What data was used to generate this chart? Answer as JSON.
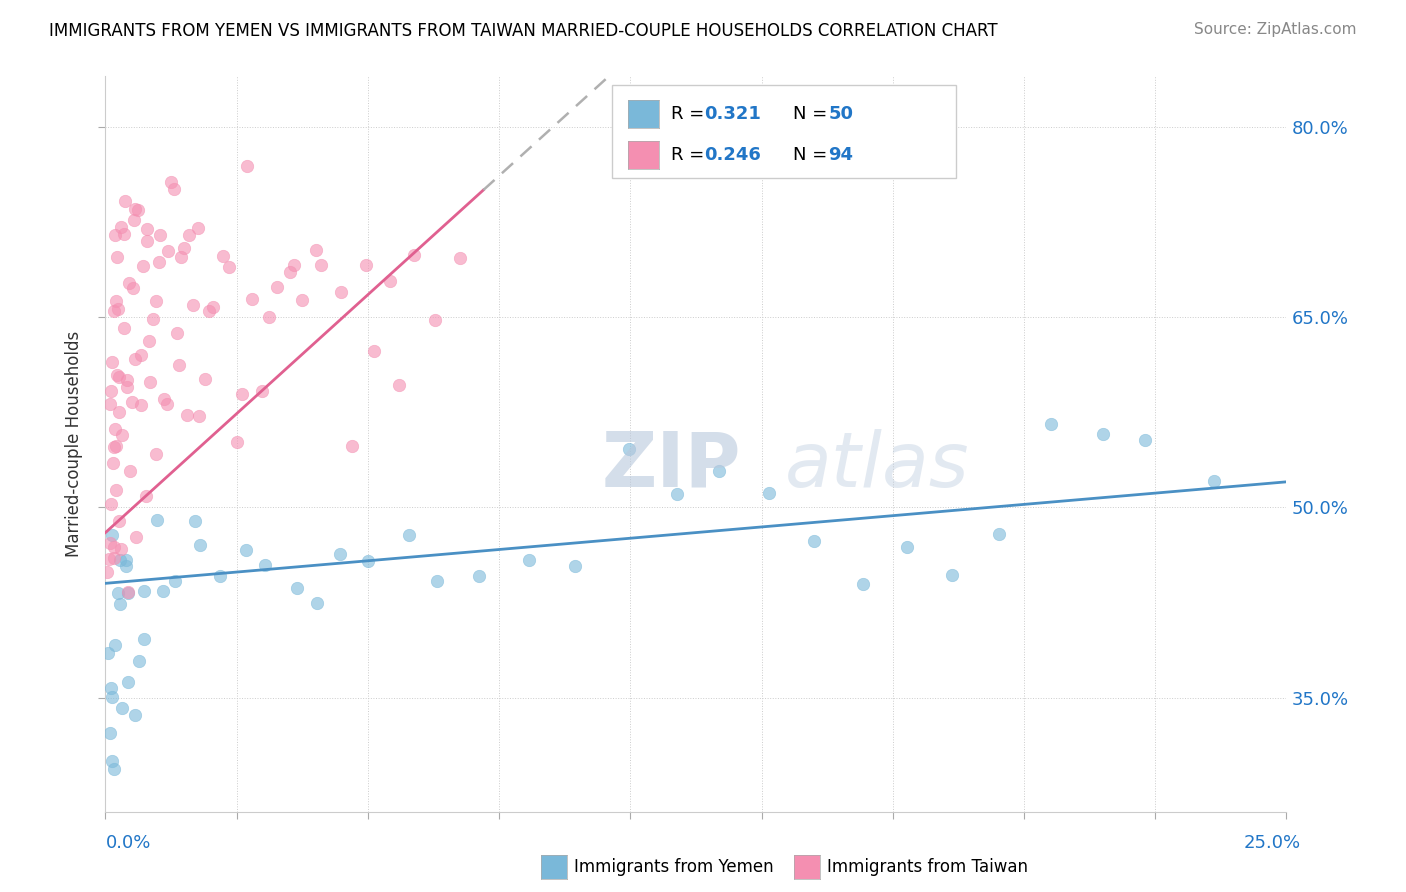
{
  "title": "IMMIGRANTS FROM YEMEN VS IMMIGRANTS FROM TAIWAN MARRIED-COUPLE HOUSEHOLDS CORRELATION CHART",
  "source": "Source: ZipAtlas.com",
  "ylabel": "Married-couple Households",
  "color_yemen": "#7ab8d9",
  "color_taiwan": "#f48fb1",
  "color_blue_text": "#2176c7",
  "color_line_yemen": "#4a90c4",
  "color_line_taiwan": "#e06090",
  "color_dashed": "#b0b0b0",
  "xlim": [
    0.0,
    25.0
  ],
  "ylim": [
    26.0,
    84.0
  ],
  "yticks": [
    35,
    50,
    65,
    80
  ],
  "ytick_labels": [
    "35.0%",
    "50.0%",
    "65.0%",
    "80.0%"
  ],
  "legend1_R": "0.321",
  "legend1_N": "50",
  "legend2_R": "0.246",
  "legend2_N": "94",
  "watermark": "ZIPatlas",
  "yemen_x": [
    0.05,
    0.08,
    0.1,
    0.12,
    0.15,
    0.18,
    0.2,
    0.22,
    0.25,
    0.28,
    0.3,
    0.35,
    0.4,
    0.45,
    0.5,
    0.55,
    0.6,
    0.7,
    0.8,
    0.9,
    1.0,
    1.2,
    1.5,
    1.8,
    2.0,
    2.5,
    3.0,
    3.5,
    4.0,
    4.5,
    5.0,
    5.5,
    6.5,
    7.0,
    8.0,
    9.0,
    10.0,
    11.0,
    12.0,
    13.0,
    14.0,
    15.0,
    16.0,
    17.0,
    18.0,
    19.0,
    20.0,
    21.0,
    22.0,
    23.5
  ],
  "yemen_y": [
    44.0,
    38.0,
    32.0,
    29.5,
    36.0,
    30.0,
    42.0,
    34.0,
    46.0,
    40.0,
    44.0,
    38.0,
    46.0,
    42.0,
    44.0,
    38.0,
    36.0,
    40.0,
    44.0,
    42.0,
    46.0,
    44.0,
    44.0,
    46.0,
    44.0,
    45.0,
    46.0,
    44.0,
    44.0,
    46.0,
    45.0,
    44.0,
    47.0,
    46.0,
    45.0,
    47.0,
    46.0,
    52.0,
    48.0,
    51.5,
    50.0,
    46.0,
    44.0,
    47.0,
    46.0,
    48.0,
    52.0,
    54.0,
    56.0,
    53.0
  ],
  "taiwan_x": [
    0.05,
    0.08,
    0.1,
    0.1,
    0.12,
    0.12,
    0.15,
    0.15,
    0.18,
    0.18,
    0.2,
    0.2,
    0.22,
    0.22,
    0.25,
    0.25,
    0.28,
    0.3,
    0.3,
    0.35,
    0.35,
    0.4,
    0.4,
    0.45,
    0.5,
    0.5,
    0.55,
    0.6,
    0.6,
    0.65,
    0.7,
    0.75,
    0.8,
    0.85,
    0.9,
    0.95,
    1.0,
    1.1,
    1.2,
    1.3,
    1.4,
    1.5,
    1.6,
    1.8,
    2.0,
    2.2,
    2.5,
    2.8,
    3.0,
    3.5,
    4.0,
    4.5,
    5.0,
    5.5,
    6.0,
    6.5,
    7.0,
    7.5,
    0.15,
    0.25,
    0.35,
    0.45,
    0.55,
    0.65,
    0.75,
    0.85,
    0.95,
    1.05,
    1.15,
    1.25,
    1.35,
    1.45,
    1.55,
    1.65,
    1.75,
    1.85,
    1.95,
    2.1,
    2.3,
    2.6,
    2.9,
    3.1,
    3.3,
    3.6,
    3.9,
    4.2,
    4.6,
    5.2,
    5.7,
    6.2,
    0.1,
    0.2,
    0.3,
    0.5
  ],
  "taiwan_y": [
    48.0,
    55.0,
    62.0,
    45.0,
    60.0,
    50.0,
    68.0,
    52.0,
    57.0,
    48.0,
    72.0,
    55.0,
    60.0,
    65.0,
    52.0,
    70.0,
    62.0,
    58.0,
    48.0,
    72.0,
    55.0,
    65.0,
    75.0,
    60.0,
    68.0,
    52.0,
    58.0,
    70.0,
    62.0,
    48.0,
    75.0,
    58.0,
    68.0,
    52.0,
    72.0,
    62.0,
    65.0,
    55.0,
    70.0,
    58.0,
    75.0,
    62.0,
    68.0,
    72.0,
    58.0,
    65.0,
    70.0,
    58.0,
    75.0,
    65.0,
    68.0,
    72.0,
    65.0,
    70.0,
    68.0,
    72.0,
    65.0,
    70.0,
    55.0,
    65.0,
    72.0,
    58.0,
    68.0,
    75.0,
    62.0,
    70.0,
    58.0,
    65.0,
    72.0,
    58.0,
    68.0,
    75.0,
    62.0,
    70.0,
    58.0,
    65.0,
    72.0,
    58.0,
    65.0,
    70.0,
    58.0,
    65.0,
    60.0,
    68.0,
    72.0,
    65.0,
    70.0,
    58.0,
    65.0,
    60.0,
    46.0,
    47.0,
    46.0,
    45.0
  ]
}
